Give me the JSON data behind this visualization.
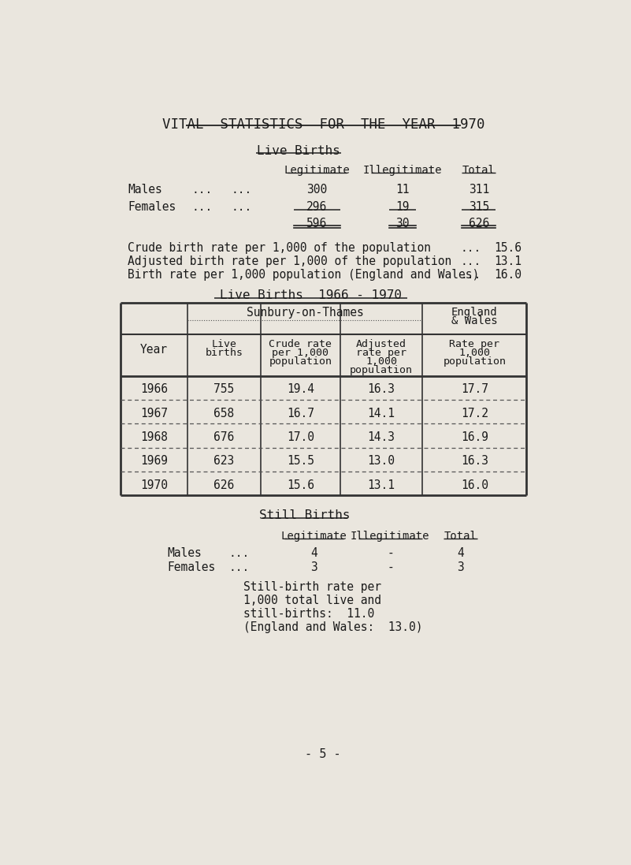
{
  "title": "VITAL  STATISTICS  FOR  THE  YEAR  1970",
  "bg_color": "#eae6de",
  "text_color": "#1a1a1a",
  "section1_title": "Live Births",
  "live_births": {
    "headers": [
      "Legitimate",
      "Illegitimate",
      "Total"
    ],
    "males": [
      "300",
      "11",
      "311"
    ],
    "females": [
      "296",
      "19",
      "315"
    ],
    "totals": [
      "596",
      "30",
      "626"
    ]
  },
  "rates": [
    [
      "Crude birth rate per 1,000 of the population",
      "15.6"
    ],
    [
      "Adjusted birth rate per 1,000 of the population",
      "13.1"
    ],
    [
      "Birth rate per 1,000 population (England and Wales)",
      "16.0"
    ]
  ],
  "section2_title": "Live Births  1966 - 1970",
  "table_data": [
    [
      "1966",
      "755",
      "19.4",
      "16.3",
      "17.7"
    ],
    [
      "1967",
      "658",
      "16.7",
      "14.1",
      "17.2"
    ],
    [
      "1968",
      "676",
      "17.0",
      "14.3",
      "16.9"
    ],
    [
      "1969",
      "623",
      "15.5",
      "13.0",
      "16.3"
    ],
    [
      "1970",
      "626",
      "15.6",
      "13.1",
      "16.0"
    ]
  ],
  "section3_title": "Still Births",
  "still_births": {
    "males": [
      "4",
      "-",
      "4"
    ],
    "females": [
      "3",
      "-",
      "3"
    ]
  },
  "still_birth_lines": [
    "Still-birth rate per",
    "1,000 total live and",
    "still-births:  11.0",
    "(England and Wales:  13.0)"
  ],
  "page_number": "- 5 -"
}
